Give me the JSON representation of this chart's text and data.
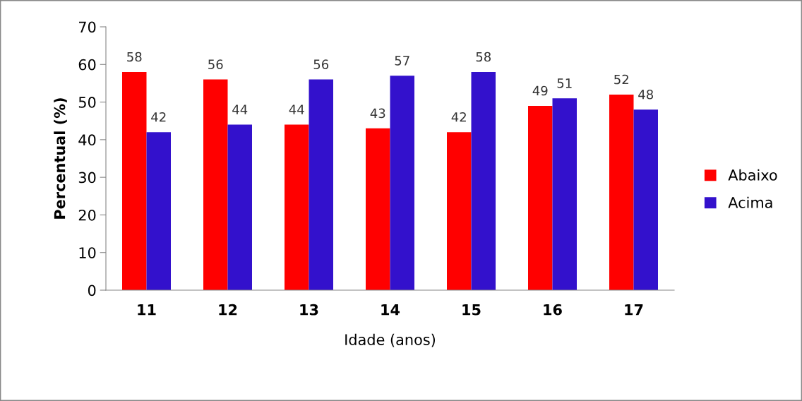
{
  "chart_data": {
    "type": "bar",
    "xlabel": "Idade (anos)",
    "ylabel": "Percentual (%)",
    "categories": [
      "11",
      "12",
      "13",
      "14",
      "15",
      "16",
      "17"
    ],
    "series": [
      {
        "name": "Abaixo",
        "color": "#ff0000",
        "values": [
          58,
          56,
          44,
          43,
          42,
          49,
          52
        ]
      },
      {
        "name": "Acima",
        "color": "#3311cc",
        "values": [
          42,
          44,
          56,
          57,
          58,
          51,
          48
        ]
      }
    ],
    "ylim": [
      0,
      70
    ],
    "yticks": [
      0,
      10,
      20,
      30,
      40,
      50,
      60,
      70
    ],
    "grid": false,
    "legend": "right",
    "data_labels": true
  }
}
